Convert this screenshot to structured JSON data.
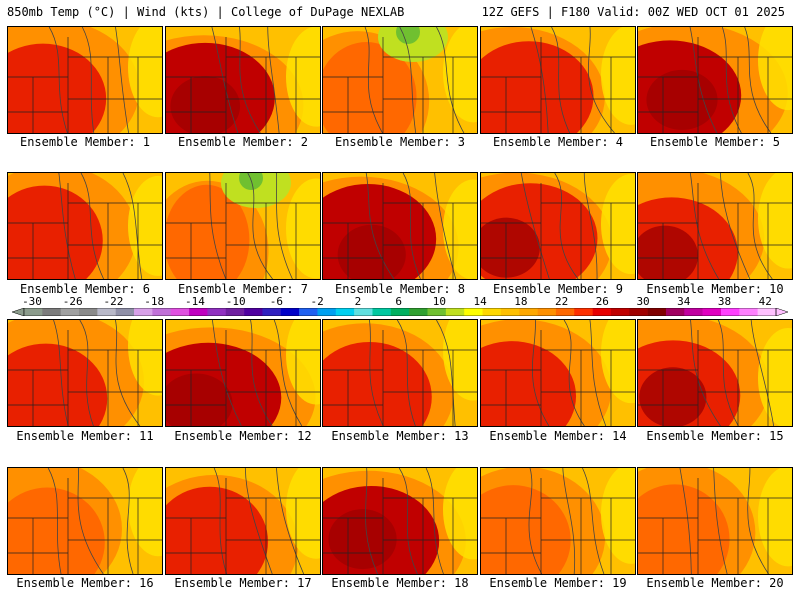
{
  "header": {
    "title": "850mb Temp (°C) | Wind (kts) | College of DuPage NEXLAB",
    "run_info": "12Z GEFS | F180 Valid: 00Z WED OCT 01 2025"
  },
  "colorbar": {
    "labels": [
      "-30",
      "-26",
      "-22",
      "-18",
      "-14",
      "-10",
      "-6",
      "-2",
      "2",
      "6",
      "10",
      "14",
      "18",
      "22",
      "26",
      "30",
      "34",
      "38",
      "42"
    ],
    "colors": [
      "#8c9c8c",
      "#7c7c7c",
      "#a0a0a0",
      "#8a8a8a",
      "#b8b8c8",
      "#9090a8",
      "#d8a0e8",
      "#c070d8",
      "#e050e0",
      "#c000c0",
      "#9030c0",
      "#7020a0",
      "#5000a0",
      "#3020c0",
      "#0000c8",
      "#2060f0",
      "#00a0f0",
      "#00d0f0",
      "#60e0e0",
      "#00c8a0",
      "#00b060",
      "#30a030",
      "#70c030",
      "#c0e020",
      "#ffff00",
      "#ffd800",
      "#ffc000",
      "#ffa800",
      "#ff9000",
      "#ff6800",
      "#ff3000",
      "#e80000",
      "#c00000",
      "#a00000",
      "#800000",
      "#a00060",
      "#c000a0",
      "#e000c0",
      "#ff40ff",
      "#ff80ff",
      "#ffc0ff"
    ]
  },
  "palette": {
    "yellow": "#ffe000",
    "gold": "#ffc000",
    "orange": "#ff9000",
    "dark_orange": "#ff6800",
    "red": "#e82000",
    "dark_red": "#c00000",
    "maroon": "#a00000",
    "light_green": "#c0e020",
    "green": "#70c030"
  },
  "members": [
    {
      "label": "Ensemble Member: 1",
      "heat": 0.72
    },
    {
      "label": "Ensemble Member: 2",
      "heat": 0.85
    },
    {
      "label": "Ensemble Member: 3",
      "heat": 0.45
    },
    {
      "label": "Ensemble Member: 4",
      "heat": 0.75
    },
    {
      "label": "Ensemble Member: 5",
      "heat": 0.88
    },
    {
      "label": "Ensemble Member: 6",
      "heat": 0.62
    },
    {
      "label": "Ensemble Member: 7",
      "heat": 0.3
    },
    {
      "label": "Ensemble Member: 8",
      "heat": 0.82
    },
    {
      "label": "Ensemble Member: 9",
      "heat": 0.8
    },
    {
      "label": "Ensemble Member: 10",
      "heat": 0.78
    },
    {
      "label": "Ensemble Member: 11",
      "heat": 0.68
    },
    {
      "label": "Ensemble Member: 12",
      "heat": 0.92
    },
    {
      "label": "Ensemble Member: 13",
      "heat": 0.7
    },
    {
      "label": "Ensemble Member: 14",
      "heat": 0.74
    },
    {
      "label": "Ensemble Member: 15",
      "heat": 0.8
    },
    {
      "label": "Ensemble Member: 16",
      "heat": 0.6
    },
    {
      "label": "Ensemble Member: 17",
      "heat": 0.62
    },
    {
      "label": "Ensemble Member: 18",
      "heat": 0.82
    },
    {
      "label": "Ensemble Member: 19",
      "heat": 0.6
    },
    {
      "label": "Ensemble Member: 20",
      "heat": 0.55
    }
  ]
}
